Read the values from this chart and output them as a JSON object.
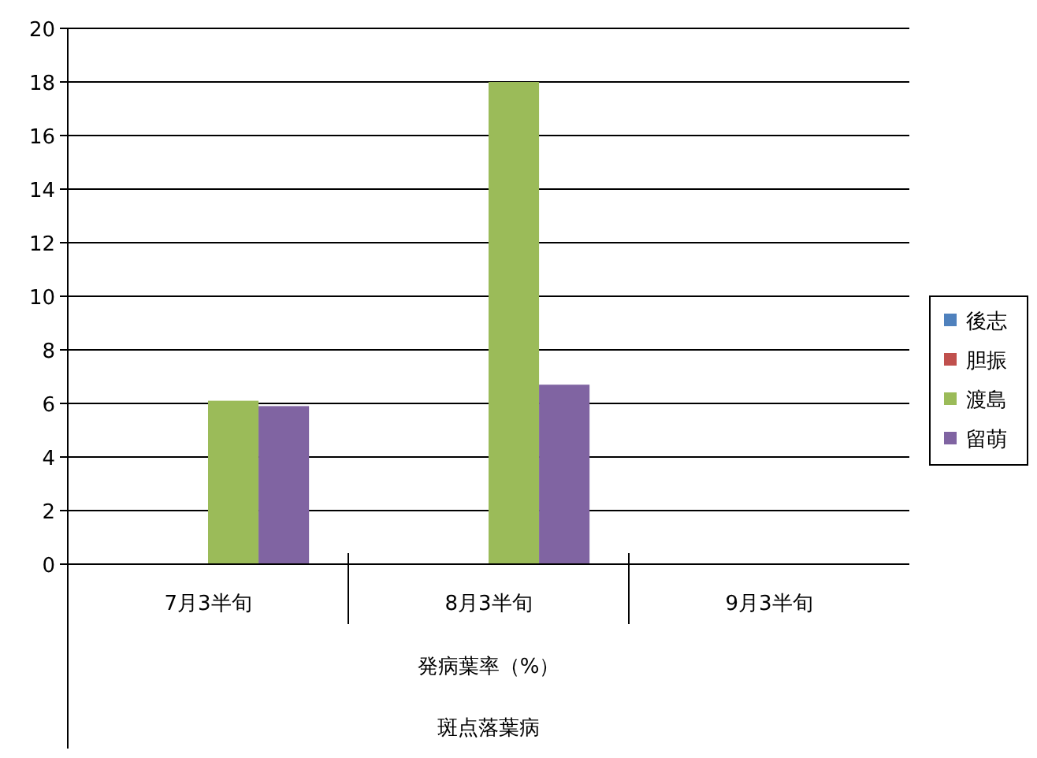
{
  "chart_data": {
    "type": "bar",
    "categories": [
      "7月3半旬",
      "8月3半旬",
      "9月3半旬"
    ],
    "xlabel": "発病葉率（%）",
    "annotations": [
      "斑点落葉病"
    ],
    "series": [
      {
        "name": "後志",
        "color": "#4f81bd",
        "values": [
          null,
          null,
          null
        ]
      },
      {
        "name": "胆振",
        "color": "#c0504d",
        "values": [
          null,
          null,
          null
        ]
      },
      {
        "name": "渡島",
        "color": "#9bbb59",
        "values": [
          6.1,
          18.0,
          null
        ]
      },
      {
        "name": "留萌",
        "color": "#8064a2",
        "values": [
          5.9,
          6.7,
          null
        ]
      }
    ],
    "ylim": [
      0,
      20
    ],
    "yticks": [
      0,
      2,
      4,
      6,
      8,
      10,
      12,
      14,
      16,
      18,
      20
    ],
    "grid": "y",
    "legend": "right"
  }
}
